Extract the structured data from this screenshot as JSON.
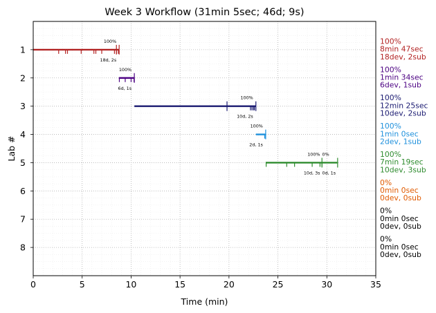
{
  "chart_data": {
    "type": "timeline",
    "title": "Week 3 Workflow (31min 5sec; 46d; 9s)",
    "xlabel": "Time (min)",
    "ylabel": "Lab #",
    "xlim": [
      0,
      35
    ],
    "xticks": [
      0,
      5,
      10,
      15,
      20,
      25,
      30,
      35
    ],
    "ylim": [
      9,
      0
    ],
    "yticks": [
      1,
      2,
      3,
      4,
      5,
      6,
      7,
      8
    ],
    "grid": "dotted",
    "labs": [
      {
        "lab": 1,
        "color": "#b22222",
        "start": 0.0,
        "end": 8.78,
        "dev_marks": [
          2.6,
          3.3,
          3.5,
          4.9,
          6.2,
          6.4,
          7.0,
          8.3,
          8.5,
          8.7
        ],
        "sub_marks": [
          8.5,
          8.78
        ],
        "percent_label": "100%",
        "count_label": "18d, 2s",
        "side_percent": "100%",
        "side_time": "8min 47sec",
        "side_counts": "18dev, 2sub"
      },
      {
        "lab": 2,
        "color": "#4b0082",
        "start": 8.75,
        "end": 10.33,
        "dev_marks": [
          8.8,
          9.4,
          10.0,
          10.3
        ],
        "sub_marks": [
          10.33
        ],
        "percent_label": "100%",
        "count_label": "6d, 1s",
        "side_percent": "100%",
        "side_time": "1min 34sec",
        "side_counts": "6dev, 1sub"
      },
      {
        "lab": 3,
        "color": "#191970",
        "start": 10.33,
        "end": 22.75,
        "dev_marks": [
          22.2,
          22.35,
          22.5,
          22.6
        ],
        "sub_marks": [
          19.8,
          22.75
        ],
        "percent_label": "100%",
        "count_label": "10d, 2s",
        "side_percent": "100%",
        "side_time": "12min 25sec",
        "side_counts": "10dev, 2sub"
      },
      {
        "lab": 4,
        "color": "#1e90dc",
        "start": 22.75,
        "end": 23.75,
        "dev_marks": [
          23.65,
          23.75
        ],
        "sub_marks": [
          23.75
        ],
        "percent_label": "100%",
        "count_label": "2d, 1s",
        "side_percent": "100%",
        "side_time": "1min 0sec",
        "side_counts": "2dev, 1sub"
      },
      {
        "lab": 5,
        "color": "#2e8b2e",
        "start": 23.75,
        "end": 31.1,
        "dev_marks": [
          23.8,
          25.9,
          26.7,
          28.5,
          29.3,
          29.5
        ],
        "sub_marks": [
          29.5,
          31.1
        ],
        "percent_label": "100%",
        "percent_label_2": "0%",
        "count_label": "10d, 3s",
        "count_label_2": "0d, 1s",
        "side_percent": "100%",
        "side_time": "7min 19sec",
        "side_counts": "10dev, 3sub"
      },
      {
        "lab": 6,
        "color": "#e05a00",
        "side_percent": "0%",
        "side_time": "0min 0sec",
        "side_counts": "0dev, 0sub"
      },
      {
        "lab": 7,
        "color": "#000000",
        "side_percent": "0%",
        "side_time": "0min 0sec",
        "side_counts": "0dev, 0sub"
      },
      {
        "lab": 8,
        "color": "#000000",
        "side_percent": "0%",
        "side_time": "0min 0sec",
        "side_counts": "0dev, 0sub"
      }
    ]
  }
}
